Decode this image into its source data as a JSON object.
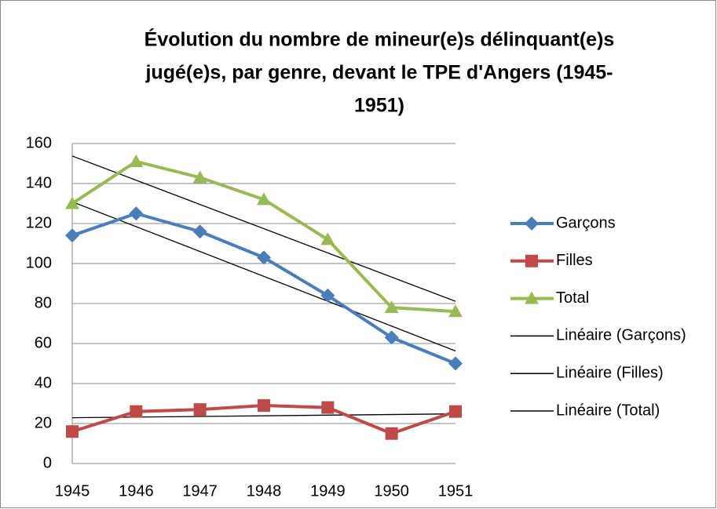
{
  "chart_data": {
    "type": "line",
    "title": [
      "Évolution du nombre de mineur(e)s  délinquant(e)s",
      "jugé(e)s, par genre, devant le TPE d'Angers (1945-",
      "1951)"
    ],
    "categories": [
      "1945",
      "1946",
      "1947",
      "1948",
      "1949",
      "1950",
      "1951"
    ],
    "series": [
      {
        "name": "Garçons",
        "color": "#4a7ebb",
        "marker": "diamond",
        "values": [
          114,
          125,
          116,
          103,
          84,
          63,
          50
        ],
        "trendline": {
          "name": "Linéaire (Garçons)",
          "color": "#000000"
        }
      },
      {
        "name": "Filles",
        "color": "#be4b48",
        "marker": "square",
        "values": [
          16,
          26,
          27,
          29,
          28,
          15,
          26
        ],
        "trendline": {
          "name": "Linéaire (Filles)",
          "color": "#000000"
        }
      },
      {
        "name": "Total",
        "color": "#98b954",
        "marker": "triangle",
        "values": [
          130,
          151,
          143,
          132,
          112,
          78,
          76
        ],
        "trendline": {
          "name": "Linéaire (Total)",
          "color": "#000000"
        }
      }
    ],
    "ylim": [
      0,
      160
    ],
    "yticks": [
      0,
      20,
      40,
      60,
      80,
      100,
      120,
      140,
      160
    ],
    "grid": true,
    "legend": "right"
  }
}
